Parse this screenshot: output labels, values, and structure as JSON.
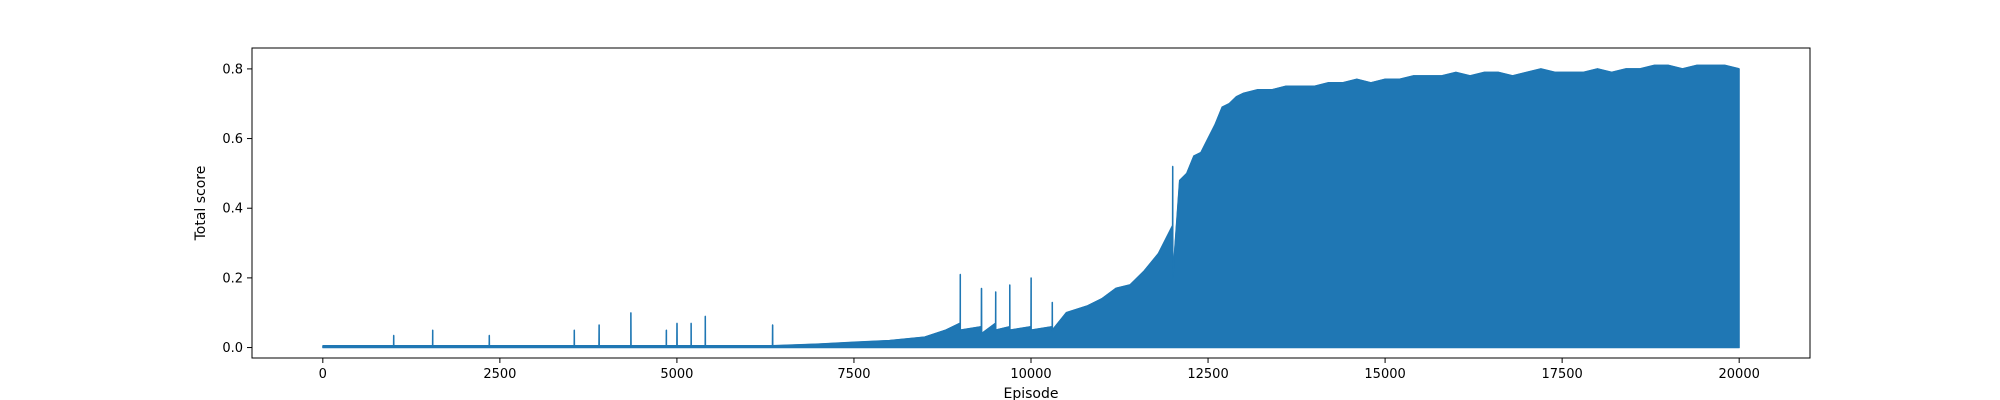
{
  "chart_data": {
    "type": "line",
    "title": "",
    "xlabel": "Episode",
    "ylabel": "Total score",
    "xlim": [
      -1000,
      21000
    ],
    "ylim": [
      -0.03,
      0.86
    ],
    "xticks": [
      0,
      2500,
      5000,
      7500,
      10000,
      12500,
      15000,
      17500,
      20000
    ],
    "xtick_labels": [
      "0",
      "2500",
      "5000",
      "7500",
      "10000",
      "12500",
      "15000",
      "17500",
      "20000"
    ],
    "yticks": [
      0.0,
      0.2,
      0.4,
      0.6,
      0.8
    ],
    "ytick_labels": [
      "0.0",
      "0.2",
      "0.4",
      "0.6",
      "0.8"
    ],
    "grid": false,
    "legend": false,
    "series": [
      {
        "color": "#1f77b4",
        "x": [
          0,
          500,
          1000,
          1001,
          1002,
          1550,
          1551,
          1552,
          2000,
          2350,
          2351,
          2352,
          3000,
          3550,
          3551,
          3552,
          3900,
          3901,
          3902,
          4350,
          4351,
          4352,
          4850,
          4851,
          4852,
          5000,
          5001,
          5002,
          5200,
          5201,
          5202,
          5400,
          5401,
          5402,
          6000,
          6350,
          6351,
          6352,
          7000,
          7500,
          8000,
          8500,
          8800,
          9000,
          9001,
          9002,
          9300,
          9301,
          9302,
          9500,
          9501,
          9502,
          9700,
          9701,
          9702,
          10000,
          10001,
          10002,
          10300,
          10301,
          10302,
          10500,
          10800,
          11000,
          11200,
          11400,
          11600,
          11800,
          12000,
          12001,
          12002,
          12100,
          12200,
          12300,
          12400,
          12500,
          12600,
          12700,
          12800,
          12900,
          13000,
          13200,
          13400,
          13600,
          13800,
          14000,
          14200,
          14400,
          14600,
          14800,
          15000,
          15200,
          15400,
          15600,
          15800,
          16000,
          16200,
          16400,
          16600,
          16800,
          17000,
          17200,
          17400,
          17600,
          17800,
          18000,
          18200,
          18400,
          18600,
          18800,
          19000,
          19200,
          19400,
          19600,
          19800,
          20000
        ],
        "y": [
          0.005,
          0.005,
          0.005,
          0.035,
          0.005,
          0.005,
          0.05,
          0.005,
          0.005,
          0.005,
          0.035,
          0.005,
          0.005,
          0.005,
          0.05,
          0.005,
          0.005,
          0.065,
          0.005,
          0.005,
          0.1,
          0.005,
          0.005,
          0.05,
          0.005,
          0.005,
          0.07,
          0.005,
          0.005,
          0.07,
          0.005,
          0.005,
          0.09,
          0.005,
          0.005,
          0.005,
          0.065,
          0.005,
          0.01,
          0.015,
          0.02,
          0.03,
          0.05,
          0.07,
          0.21,
          0.05,
          0.06,
          0.17,
          0.04,
          0.07,
          0.16,
          0.05,
          0.06,
          0.18,
          0.05,
          0.06,
          0.2,
          0.05,
          0.06,
          0.13,
          0.05,
          0.1,
          0.12,
          0.14,
          0.17,
          0.18,
          0.22,
          0.27,
          0.35,
          0.52,
          0.2,
          0.48,
          0.5,
          0.55,
          0.56,
          0.6,
          0.64,
          0.69,
          0.7,
          0.72,
          0.73,
          0.74,
          0.74,
          0.75,
          0.75,
          0.75,
          0.76,
          0.76,
          0.77,
          0.76,
          0.77,
          0.77,
          0.78,
          0.78,
          0.78,
          0.79,
          0.78,
          0.79,
          0.79,
          0.78,
          0.79,
          0.8,
          0.79,
          0.79,
          0.79,
          0.8,
          0.79,
          0.8,
          0.8,
          0.81,
          0.81,
          0.8,
          0.81,
          0.81,
          0.81,
          0.8
        ],
        "lower": [
          0,
          0,
          0,
          0,
          0,
          0,
          0,
          0,
          0,
          0,
          0,
          0,
          0,
          0,
          0,
          0,
          0,
          0,
          0,
          0,
          0,
          0,
          0,
          0,
          0,
          0,
          0,
          0,
          0,
          0,
          0,
          0,
          0,
          0,
          0,
          0,
          0,
          0,
          0,
          0,
          0,
          0,
          0,
          0,
          0,
          0,
          0,
          0,
          0,
          0,
          0,
          0,
          0,
          0,
          0,
          0,
          0,
          0,
          0,
          0,
          0,
          0,
          0,
          0,
          0,
          0,
          0,
          0,
          0,
          0,
          0,
          0,
          0,
          0,
          0,
          0,
          0,
          0,
          0,
          0,
          0,
          0,
          0,
          0,
          0,
          0,
          0,
          0,
          0,
          0,
          0,
          0,
          0,
          0,
          0,
          0,
          0,
          0,
          0,
          0,
          0,
          0,
          0,
          0,
          0,
          0,
          0,
          0,
          0,
          0,
          0,
          0,
          0,
          0,
          0,
          0
        ]
      }
    ]
  }
}
